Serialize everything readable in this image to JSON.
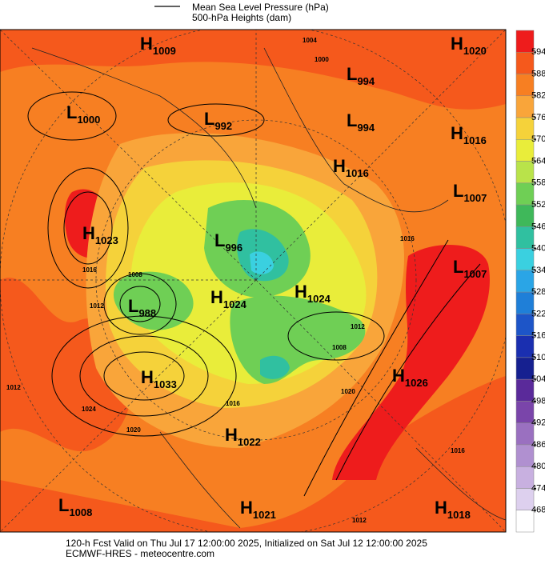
{
  "legend": {
    "items": [
      "Mean Sea Level Pressure (hPa)",
      "500-hPa Heights (dam)"
    ]
  },
  "pressure_centers": [
    {
      "symbol": "H",
      "value": 1009
    },
    {
      "symbol": "L",
      "value": 994
    },
    {
      "symbol": "H",
      "value": 1020
    },
    {
      "symbol": "L",
      "value": 1000
    },
    {
      "symbol": "L",
      "value": 992
    },
    {
      "symbol": "L",
      "value": 994
    },
    {
      "symbol": "H",
      "value": 1016
    },
    {
      "symbol": "H",
      "value": 1016
    },
    {
      "symbol": "L",
      "value": 1007
    },
    {
      "symbol": "H",
      "value": 1023
    },
    {
      "symbol": "L",
      "value": 996
    },
    {
      "symbol": "L",
      "value": 1007
    },
    {
      "symbol": "H",
      "value": 1024
    },
    {
      "symbol": "H",
      "value": 1024
    },
    {
      "symbol": "L",
      "value": 988
    },
    {
      "symbol": "H",
      "value": 1033
    },
    {
      "symbol": "H",
      "value": 1026
    },
    {
      "symbol": "H",
      "value": 1022
    },
    {
      "symbol": "L",
      "value": 1008
    },
    {
      "symbol": "H",
      "value": 1021
    },
    {
      "symbol": "H",
      "value": 1018
    }
  ],
  "isobar_labels": [
    1004,
    1000,
    1016,
    1012,
    1008,
    1012,
    1008,
    1020,
    1024,
    1020,
    1012,
    1016,
    1016,
    1012,
    1016
  ],
  "colorbar": {
    "ticks": [
      594,
      588,
      582,
      576,
      570,
      564,
      558,
      552,
      546,
      540,
      534,
      528,
      522,
      516,
      510,
      504,
      498,
      492,
      486,
      480,
      474,
      468
    ],
    "colors": [
      "#ee1c1c",
      "#f5591c",
      "#f77f22",
      "#f9a53a",
      "#f5d23a",
      "#e9ed3a",
      "#b9e34a",
      "#6fcf55",
      "#3fb85a",
      "#30c0a0",
      "#3ad0e0",
      "#2aa5e6",
      "#1f7fd8",
      "#1d55c8",
      "#1a2fb0",
      "#162090",
      "#5a2a9a",
      "#7a45aa",
      "#9a70c0",
      "#b090d0",
      "#c8b0e0",
      "#ddd0ee",
      "#ffffff"
    ]
  },
  "footer": {
    "lines": [
      "120-h Fcst Valid on Thu Jul 17 12:00:00 2025, Initialized on Sat Jul 12 12:00:00 2025",
      "ECMWF-HRES - meteocentre.com"
    ]
  }
}
